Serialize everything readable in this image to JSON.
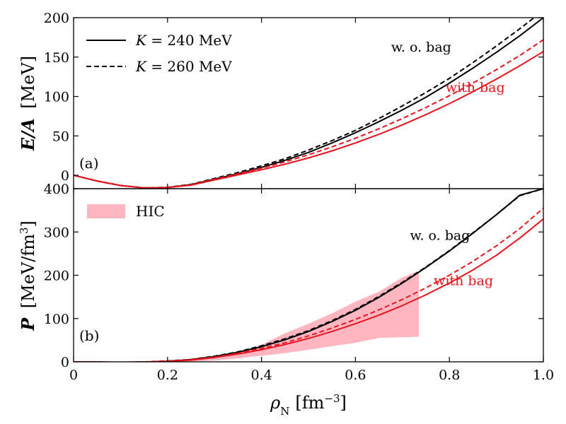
{
  "chart_data": {
    "type": "line",
    "shared_x": {
      "label_symbol": "ρ",
      "label_sub": "N",
      "label_unit_open": "[fm",
      "label_unit_exp": "−3",
      "label_unit_close": "]",
      "xlim": [
        0,
        1.0
      ],
      "ticks": [
        0,
        0.2,
        0.4,
        0.6,
        0.8,
        1.0
      ],
      "tick_labels": [
        "0",
        "0.2",
        "0.4",
        "0.6",
        "0.8",
        "1.0"
      ]
    },
    "legend": [
      {
        "style": "solid",
        "text": "K = 240 MeV",
        "italic_part": "K",
        "rest": " = 240 MeV"
      },
      {
        "style": "dashed",
        "text": "K = 260 MeV",
        "italic_part": "K",
        "rest": " = 260 MeV"
      }
    ],
    "colors": {
      "wo_bag": "#000000",
      "with_bag": "#e8141e",
      "hic": "#ffb6c1"
    },
    "panels": [
      {
        "id": "a",
        "panel_label": "(a)",
        "ylabel_main": "E/A",
        "ylabel_unit": "[MeV]",
        "ylim": [
          -17,
          200
        ],
        "yticks": [
          0,
          50,
          100,
          150,
          200
        ],
        "ytick_labels": [
          "0",
          "50",
          "100",
          "150",
          "200"
        ],
        "annotations": [
          {
            "text": "w. o. bag",
            "color": "#000000",
            "x": 0.74,
            "y": 157
          },
          {
            "text": "with bag",
            "color": "#e8141e",
            "x": 0.855,
            "y": 106
          }
        ],
        "series": [
          {
            "name": "w.o. bag, K = 240 MeV",
            "group": "wo_bag",
            "style": "solid",
            "x": [
              0,
              0.05,
              0.1,
              0.15,
              0.2,
              0.25,
              0.3,
              0.35,
              0.4,
              0.45,
              0.5,
              0.55,
              0.6,
              0.65,
              0.7,
              0.75,
              0.8,
              0.85,
              0.9,
              0.95,
              1.0
            ],
            "y": [
              0,
              -7.2,
              -13,
              -16,
              -15.5,
              -12,
              -5,
              2,
              10,
              19,
              29,
              41,
              54,
              68,
              83,
              99,
              117,
              136,
              156,
              177,
              200
            ]
          },
          {
            "name": "w.o. bag, K = 260 MeV",
            "group": "wo_bag",
            "style": "dashed",
            "x": [
              0,
              0.05,
              0.1,
              0.15,
              0.2,
              0.25,
              0.3,
              0.35,
              0.4,
              0.45,
              0.5,
              0.55,
              0.6,
              0.65,
              0.7,
              0.75,
              0.8,
              0.85,
              0.9,
              0.95,
              1.0
            ],
            "y": [
              0,
              -7.2,
              -13,
              -16,
              -15.3,
              -11.5,
              -4,
              3.5,
              12,
              21,
              32,
              44,
              57,
              72,
              88,
              105,
              123,
              143,
              164,
              186,
              209
            ]
          },
          {
            "name": "with bag, K = 240 MeV",
            "group": "with_bag",
            "style": "solid",
            "x": [
              0,
              0.05,
              0.1,
              0.15,
              0.2,
              0.25,
              0.3,
              0.35,
              0.4,
              0.45,
              0.5,
              0.55,
              0.6,
              0.65,
              0.7,
              0.75,
              0.8,
              0.85,
              0.9,
              0.95,
              1.0
            ],
            "y": [
              0,
              -7.2,
              -13,
              -16,
              -15.6,
              -12.5,
              -6,
              0.5,
              7,
              14,
              22,
              31,
              41,
              52,
              64,
              77,
              91,
              106,
              122,
              139,
              157
            ]
          },
          {
            "name": "with bag, K = 260 MeV",
            "group": "with_bag",
            "style": "dashed",
            "x": [
              0,
              0.05,
              0.1,
              0.15,
              0.2,
              0.25,
              0.3,
              0.35,
              0.4,
              0.45,
              0.5,
              0.55,
              0.6,
              0.65,
              0.7,
              0.75,
              0.8,
              0.85,
              0.9,
              0.95,
              1.0
            ],
            "y": [
              0,
              -7.2,
              -13,
              -16,
              -15.4,
              -12,
              -5,
              2,
              9,
              17,
              26,
              36,
              47,
              59,
              72,
              86,
              101,
              117,
              134,
              152,
              172
            ]
          }
        ]
      },
      {
        "id": "b",
        "panel_label": "(b)",
        "ylabel_main": "P",
        "ylabel_unit_open": "[MeV/fm",
        "ylabel_unit_exp": "3",
        "ylabel_unit_close": "]",
        "ylim": [
          0,
          400
        ],
        "yticks": [
          0,
          100,
          200,
          300,
          400
        ],
        "ytick_labels": [
          "0",
          "100",
          "200",
          "300",
          "400"
        ],
        "legend": [
          {
            "label": "HIC",
            "style": "band"
          }
        ],
        "annotations": [
          {
            "text": "w. o. bag",
            "color": "#000000",
            "x": 0.78,
            "y": 282
          },
          {
            "text": "with bag",
            "color": "#e8141e",
            "x": 0.83,
            "y": 177
          }
        ],
        "band": {
          "name": "HIC",
          "x": [
            0.15,
            0.2,
            0.25,
            0.3,
            0.35,
            0.4,
            0.45,
            0.5,
            0.55,
            0.6,
            0.65,
            0.7,
            0.735
          ],
          "lower": [
            0,
            0,
            1,
            3,
            8,
            14,
            20,
            28,
            36,
            44,
            55,
            57,
            58
          ],
          "upper": [
            0,
            1,
            4,
            11,
            23,
            39,
            66,
            88,
            112,
            139,
            162,
            195,
            210
          ]
        },
        "series": [
          {
            "name": "w.o. bag, K = 240 MeV",
            "group": "wo_bag",
            "style": "solid",
            "x": [
              0,
              0.05,
              0.1,
              0.15,
              0.2,
              0.25,
              0.3,
              0.35,
              0.4,
              0.45,
              0.5,
              0.55,
              0.6,
              0.65,
              0.7,
              0.75,
              0.8,
              0.85,
              0.9,
              0.95,
              1.0
            ],
            "y": [
              0,
              -0.5,
              -1,
              -0.3,
              1.5,
              5,
              12,
              22,
              35,
              51,
              70,
              93,
              119,
              149,
              182,
              218,
              256,
              297,
              340,
              385,
              400
            ]
          },
          {
            "name": "w.o. bag, K = 260 MeV",
            "group": "wo_bag",
            "style": "dashed",
            "x": [
              0,
              0.05,
              0.1,
              0.15,
              0.2,
              0.25,
              0.3,
              0.35,
              0.4,
              0.45,
              0.5,
              0.55,
              0.6,
              0.65,
              0.7,
              0.75,
              0.8,
              0.85,
              0.9,
              0.95,
              1.0
            ],
            "y": [
              0,
              -0.5,
              -1,
              -0.2,
              2,
              5.5,
              13,
              23,
              37,
              53,
              72,
              95,
              121,
              151,
              184,
              219,
              257,
              298,
              340,
              384,
              400
            ]
          },
          {
            "name": "with bag, K = 240 MeV",
            "group": "with_bag",
            "style": "solid",
            "x": [
              0,
              0.05,
              0.1,
              0.15,
              0.2,
              0.25,
              0.3,
              0.35,
              0.4,
              0.45,
              0.5,
              0.55,
              0.6,
              0.65,
              0.7,
              0.75,
              0.8,
              0.85,
              0.9,
              0.95,
              1.0
            ],
            "y": [
              0,
              -0.5,
              -1,
              -0.3,
              1.2,
              4,
              10,
              18,
              28,
              40,
              54,
              70,
              88,
              108,
              130,
              155,
              182,
              212,
              246,
              286,
              330
            ]
          },
          {
            "name": "with bag, K = 260 MeV",
            "group": "with_bag",
            "style": "dashed",
            "x": [
              0,
              0.05,
              0.1,
              0.15,
              0.2,
              0.25,
              0.3,
              0.35,
              0.4,
              0.45,
              0.5,
              0.55,
              0.6,
              0.65,
              0.7,
              0.75,
              0.8,
              0.85,
              0.9,
              0.95,
              1.0
            ],
            "y": [
              0,
              -0.5,
              -1,
              -0.2,
              1.6,
              5,
              11,
              20,
              31,
              44,
              60,
              78,
              98,
              120,
              144,
              171,
              200,
              232,
              268,
              308,
              355
            ]
          }
        ]
      }
    ]
  }
}
